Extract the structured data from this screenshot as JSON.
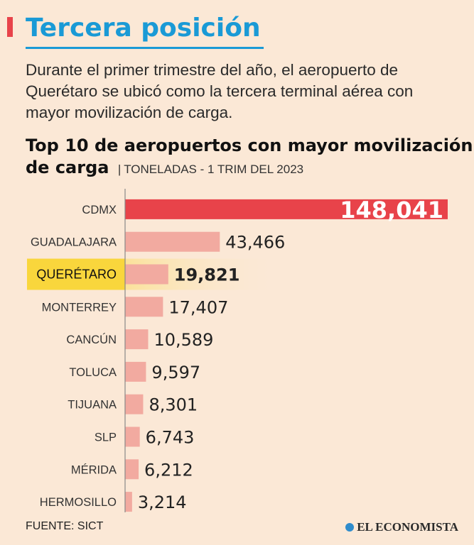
{
  "header": {
    "title": "Tercera posición",
    "intro": "Durante el primer trimestre del año, el aeropuerto de Querétaro se ubicó como la tercera terminal aérea con mayor movilización de carga."
  },
  "chart_data": {
    "type": "bar",
    "orientation": "horizontal",
    "title": "Top 10 de aeropuertos con mayor movilización de carga",
    "subtitle": "TONELADAS - 1 TRIM DEL 2023",
    "categories": [
      "CDMX",
      "GUADALAJARA",
      "QUERÉTARO",
      "MONTERREY",
      "CANCÚN",
      "TOLUCA",
      "TIJUANA",
      "SLP",
      "MÉRIDA",
      "HERMOSILLO"
    ],
    "values": [
      148041,
      43466,
      19821,
      17407,
      10589,
      9597,
      8301,
      6743,
      6212,
      3214
    ],
    "value_labels": [
      "148,041",
      "43,466",
      "19,821",
      "17,407",
      "10,589",
      "9,597",
      "8,301",
      "6,743",
      "6,212",
      "3,214"
    ],
    "highlight": "QUERÉTARO",
    "xlim": [
      0,
      148041
    ],
    "xlabel": "",
    "ylabel": ""
  },
  "colors": {
    "bar": "#f2aaa0",
    "bar_top": "#e8434a",
    "highlight": "#f9d63c",
    "axis": "#888888"
  },
  "footer": {
    "source": "FUENTE: SICT",
    "logo": "EL ECONOMISTA"
  }
}
